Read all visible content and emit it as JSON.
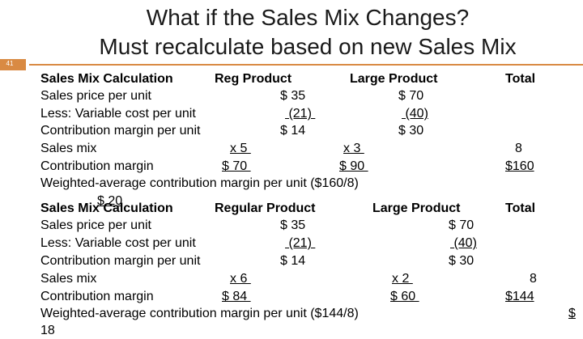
{
  "slide": {
    "title_line1": "What if the Sales Mix Changes?",
    "title_line2": "Must recalculate based on new Sales Mix",
    "slide_number": "41",
    "accent_color": "#d98a43"
  },
  "table1": {
    "header": {
      "label": "Sales Mix Calculation",
      "col1": "Reg Product",
      "col2": "Large Product",
      "col3": "Total"
    },
    "price": {
      "label": "Sales price per unit",
      "col1": "$ 35",
      "col2": "$ 70"
    },
    "variable": {
      "label": "Less: Variable cost per unit",
      "col1": " (21) ",
      "col2": " (40)"
    },
    "cm_unit": {
      "label": "Contribution margin per unit",
      "col1": "$ 14",
      "col2": "$ 30"
    },
    "mix": {
      "label": "Sales mix",
      "col1": "x 5 ",
      "col2": "x 3 ",
      "col3": "8"
    },
    "cm": {
      "label": "Contribution margin",
      "col1": "$ 70 ",
      "col2": "$ 90 ",
      "col3": "$160"
    },
    "weighted": "Weighted-average contribution margin per unit ($160/8)",
    "weighted_value": "$ 20"
  },
  "table2": {
    "header": {
      "label": "Sales Mix Calculation",
      "col1": "Regular Product",
      "col2": "Large Product",
      "col3": "Total"
    },
    "price": {
      "label": "Sales price per unit",
      "col1": "$ 35",
      "col2": "$ 70"
    },
    "variable": {
      "label": "Less: Variable cost per unit",
      "col1": " (21) ",
      "col2": " (40)"
    },
    "cm_unit": {
      "label": "Contribution margin per unit",
      "col1": "$ 14",
      "col2": "$ 30"
    },
    "mix": {
      "label": "Sales mix",
      "col1": "x 6 ",
      "col2": "x 2 ",
      "col3": "8"
    },
    "cm": {
      "label": "Contribution margin",
      "col1": "$ 84 ",
      "col2": "$ 60 ",
      "col3": "$144"
    },
    "weighted": "Weighted-average contribution margin per unit ($144/8)",
    "weighted_value_part": "$",
    "weighted_value_cut": "18"
  }
}
